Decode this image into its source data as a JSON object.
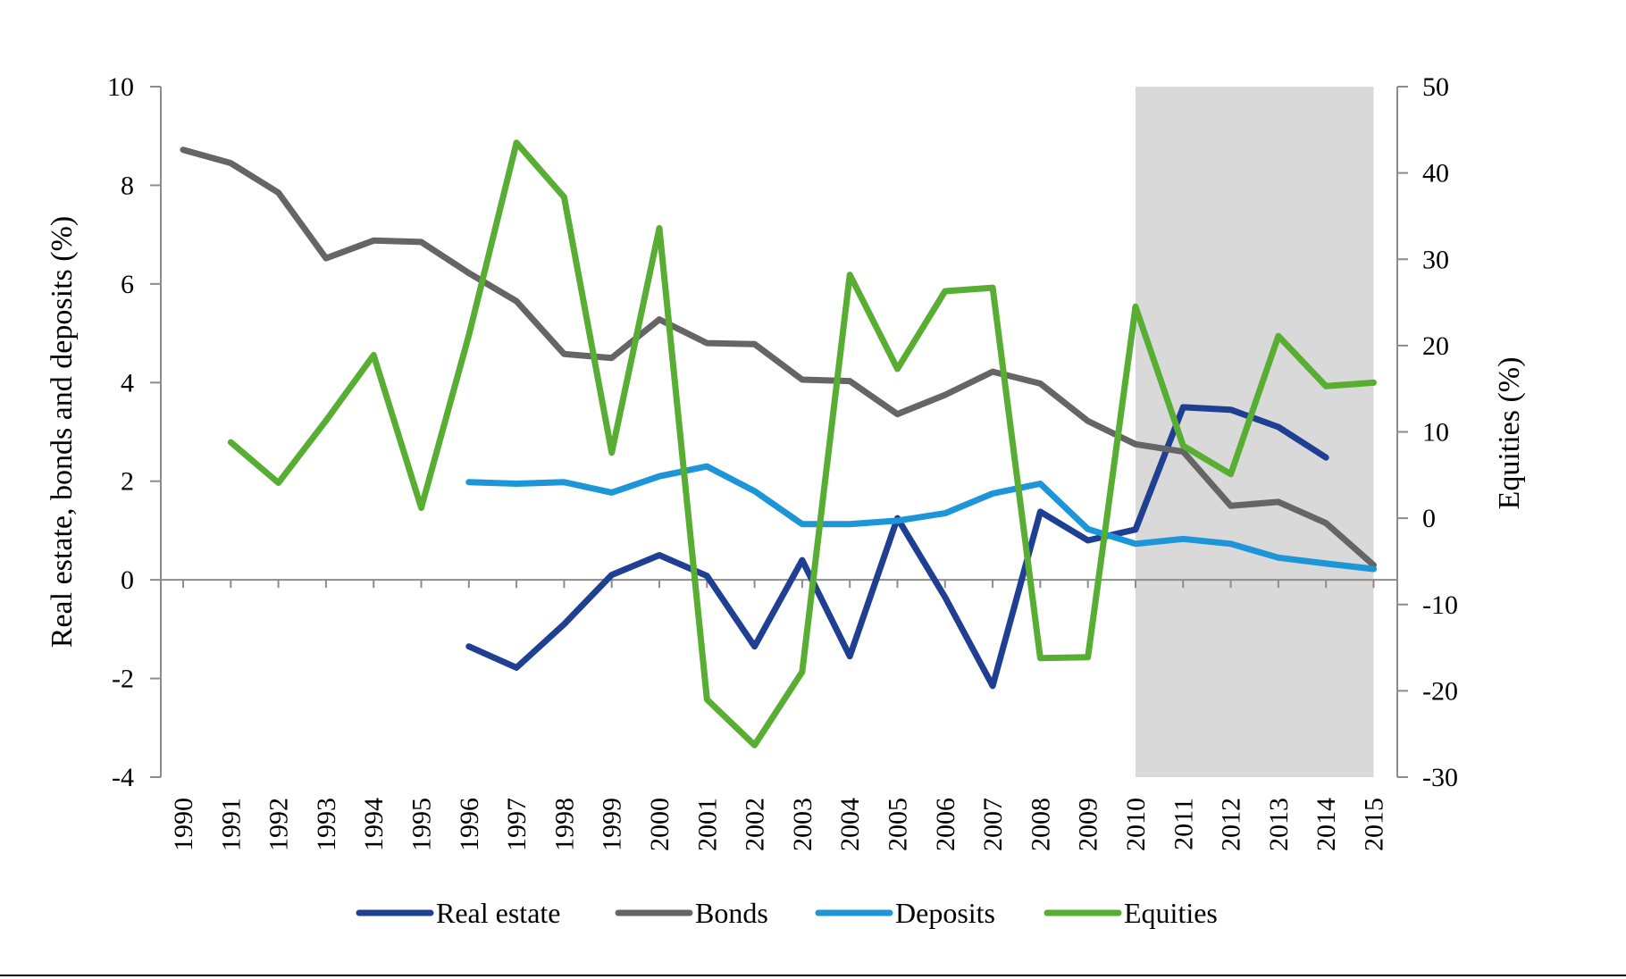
{
  "chart_data": {
    "type": "line",
    "title": "",
    "ylabel": "Real estate, bonds and deposits (%)",
    "y2label": "Equities (%)",
    "ylim": [
      -4,
      10
    ],
    "y2lim": [
      -30,
      50
    ],
    "yticks": [
      -4,
      -2,
      0,
      2,
      4,
      6,
      8,
      10
    ],
    "y2ticks": [
      -30,
      -20,
      -10,
      0,
      10,
      20,
      30,
      40,
      50
    ],
    "ytick_labels": [
      "-4",
      "-2",
      "0",
      "2",
      "4",
      "6",
      "8",
      "10"
    ],
    "y2tick_labels": [
      "-30",
      "-20",
      "-10",
      "0",
      "10",
      "20",
      "30",
      "40",
      "50"
    ],
    "x": [
      1990,
      1991,
      1992,
      1993,
      1994,
      1995,
      1996,
      1997,
      1998,
      1999,
      2000,
      2001,
      2002,
      2003,
      2004,
      2005,
      2006,
      2007,
      2008,
      2009,
      2010,
      2011,
      2012,
      2013,
      2014,
      2015
    ],
    "x_labels": [
      "1990",
      "1991",
      "1992",
      "1993",
      "1994",
      "1995",
      "1996",
      "1997",
      "1998",
      "1999",
      "2000",
      "2001",
      "2002",
      "2003",
      "2004",
      "2005",
      "2006",
      "2007",
      "2008",
      "2009",
      "2010",
      "2011",
      "2012",
      "2013",
      "2014",
      "2015"
    ],
    "shaded_region": {
      "x_start": 2010,
      "x_end": 2015,
      "color": "#d9d9d9"
    },
    "series": [
      {
        "name": "Real estate",
        "axis": "left",
        "color": "#1f3f93",
        "values": [
          null,
          null,
          null,
          null,
          null,
          null,
          -1.35,
          -1.78,
          -0.9,
          0.1,
          0.5,
          0.08,
          -1.35,
          0.4,
          -1.55,
          1.25,
          -0.35,
          -2.15,
          1.38,
          0.8,
          1.02,
          3.5,
          3.45,
          3.1,
          2.48,
          null
        ]
      },
      {
        "name": "Bonds",
        "axis": "left",
        "color": "#656565",
        "values": [
          8.72,
          8.45,
          7.85,
          6.52,
          6.88,
          6.85,
          6.22,
          5.65,
          4.58,
          4.5,
          5.28,
          4.8,
          4.78,
          4.06,
          4.03,
          3.36,
          3.75,
          4.22,
          3.98,
          3.22,
          2.75,
          2.6,
          1.5,
          1.58,
          1.15,
          0.3
        ]
      },
      {
        "name": "Deposits",
        "axis": "left",
        "color": "#1c96d8",
        "values": [
          null,
          null,
          null,
          null,
          null,
          null,
          1.98,
          1.95,
          1.98,
          1.77,
          2.1,
          2.3,
          1.8,
          1.13,
          1.13,
          1.2,
          1.35,
          1.75,
          1.95,
          1.03,
          0.73,
          0.83,
          0.73,
          0.45,
          0.33,
          0.22
        ]
      },
      {
        "name": "Equities",
        "axis": "right",
        "color": "#57ae33",
        "values": [
          null,
          8.8,
          4.1,
          11.3,
          18.9,
          1.2,
          21.2,
          43.5,
          37.2,
          7.6,
          33.6,
          -21,
          -26.3,
          -17.8,
          28.2,
          17.3,
          26.3,
          26.7,
          -16.2,
          -16.1,
          24.5,
          8.4,
          5.1,
          21.1,
          15.3,
          15.7
        ]
      }
    ]
  }
}
